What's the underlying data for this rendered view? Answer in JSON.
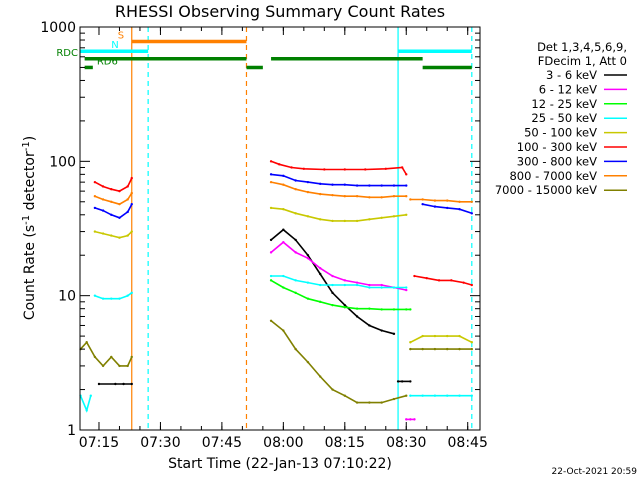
{
  "chart_data": {
    "type": "line",
    "title": "RHESSI Observing Summary Count Rates",
    "xlabel": "Start Time (22-Jan-13 07:10:22)",
    "ylabel": "Count Rate (s⁻¹ detector⁻¹)",
    "ylabel_parts": {
      "main": "Count Rate (s",
      "exp1": "-1",
      "mid": " detector",
      "exp2": "-1",
      "end": ")"
    },
    "yscale": "log",
    "ylim": [
      1,
      1000
    ],
    "xlim": [
      "07:10:22",
      "08:48:00"
    ],
    "x_ticks": [
      "07:15",
      "07:30",
      "07:45",
      "08:00",
      "08:15",
      "08:30",
      "08:45"
    ],
    "y_ticks": [
      "1",
      "10",
      "100",
      "1000"
    ],
    "timestamp": "22-Oct-2021 20:59",
    "legend": {
      "header": [
        "Det 1,3,4,5,6,9,",
        "FDecim 1, Att 0"
      ],
      "position": "right"
    },
    "series": [
      {
        "name": "3 - 6 keV",
        "color": "#000000",
        "segments": [
          {
            "x": [
              "07:15",
              "07:19",
              "07:21",
              "07:23"
            ],
            "y": [
              2.2,
              2.2,
              2.2,
              2.2
            ]
          },
          {
            "x": [
              "07:57",
              "08:00",
              "08:03",
              "08:06",
              "08:09",
              "08:12",
              "08:15",
              "08:18",
              "08:21",
              "08:24",
              "08:27"
            ],
            "y": [
              26,
              31,
              26,
              20,
              14.5,
              10.5,
              8.5,
              7,
              6,
              5.5,
              5.2
            ]
          },
          {
            "x": [
              "08:28",
              "08:29",
              "08:31"
            ],
            "y": [
              2.3,
              2.3,
              2.3
            ]
          }
        ]
      },
      {
        "name": "6 - 12 keV",
        "color": "#ff00ff",
        "segments": [
          {
            "x": [
              "07:57",
              "08:00",
              "08:03",
              "08:06",
              "08:09",
              "08:12",
              "08:15",
              "08:18",
              "08:21",
              "08:24",
              "08:27",
              "08:30"
            ],
            "y": [
              21,
              25,
              21,
              19,
              16,
              14,
              13,
              12.5,
              12,
              12,
              11.5,
              11
            ]
          },
          {
            "x": [
              "08:30",
              "08:31",
              "08:32"
            ],
            "y": [
              1.2,
              1.2,
              1.2
            ]
          }
        ]
      },
      {
        "name": "12 - 25 keV",
        "color": "#00ff00",
        "segments": [
          {
            "x": [
              "07:57",
              "08:00",
              "08:03",
              "08:06",
              "08:09",
              "08:12",
              "08:15",
              "08:18",
              "08:21",
              "08:24",
              "08:27",
              "08:30",
              "08:31"
            ],
            "y": [
              13,
              11.5,
              10.5,
              9.5,
              9,
              8.5,
              8.2,
              8,
              8,
              7.9,
              7.9,
              7.9,
              7.9
            ]
          }
        ]
      },
      {
        "name": "25 - 50 keV",
        "color": "#00ffff",
        "segments": [
          {
            "x": [
              "07:10:30",
              "07:12",
              "07:13"
            ],
            "y": [
              1.8,
              1.4,
              1.8
            ]
          },
          {
            "x": [
              "07:14",
              "07:16",
              "07:18",
              "07:20",
              "07:22",
              "07:23"
            ],
            "y": [
              10,
              9.5,
              9.5,
              9.5,
              10,
              10.5
            ]
          },
          {
            "x": [
              "07:57",
              "08:00",
              "08:03",
              "08:06",
              "08:09",
              "08:12",
              "08:15",
              "08:18",
              "08:21",
              "08:24",
              "08:27",
              "08:30"
            ],
            "y": [
              14,
              14,
              13,
              12.5,
              12,
              12,
              12,
              12,
              11.5,
              11.5,
              11.5,
              11.5
            ]
          },
          {
            "x": [
              "08:31",
              "08:34",
              "08:37",
              "08:40",
              "08:43",
              "08:46"
            ],
            "y": [
              1.8,
              1.8,
              1.8,
              1.8,
              1.8,
              1.8
            ]
          }
        ]
      },
      {
        "name": "50 - 100 keV",
        "color": "#c8c800",
        "segments": [
          {
            "x": [
              "07:14",
              "07:16",
              "07:18",
              "07:20",
              "07:22",
              "07:23"
            ],
            "y": [
              30,
              29,
              28,
              27,
              28,
              30
            ]
          },
          {
            "x": [
              "07:57",
              "08:00",
              "08:03",
              "08:06",
              "08:09",
              "08:12",
              "08:15",
              "08:18",
              "08:21",
              "08:24",
              "08:27",
              "08:30"
            ],
            "y": [
              45,
              44,
              41,
              39,
              37,
              36,
              36,
              36,
              37,
              38,
              39,
              40
            ]
          },
          {
            "x": [
              "08:31",
              "08:34",
              "08:37",
              "08:40",
              "08:43",
              "08:46"
            ],
            "y": [
              4.5,
              5,
              5,
              5,
              5,
              4.5
            ]
          }
        ]
      },
      {
        "name": "100 - 300 keV",
        "color": "#ff0000",
        "segments": [
          {
            "x": [
              "07:14",
              "07:16",
              "07:18",
              "07:20",
              "07:22",
              "07:23"
            ],
            "y": [
              70,
              65,
              62,
              60,
              65,
              75
            ]
          },
          {
            "x": [
              "07:57",
              "07:59",
              "08:02",
              "08:05",
              "08:10",
              "08:15",
              "08:20",
              "08:25",
              "08:29",
              "08:30"
            ],
            "y": [
              100,
              95,
              90,
              88,
              87,
              87,
              87,
              88,
              90,
              80
            ]
          },
          {
            "x": [
              "08:32",
              "08:35",
              "08:38",
              "08:41",
              "08:44",
              "08:46"
            ],
            "y": [
              14,
              13.5,
              13,
              13,
              12.5,
              12
            ]
          }
        ]
      },
      {
        "name": "300 - 800 keV",
        "color": "#0000ff",
        "segments": [
          {
            "x": [
              "07:14",
              "07:16",
              "07:18",
              "07:20",
              "07:22",
              "07:23"
            ],
            "y": [
              45,
              43,
              40,
              38,
              42,
              48
            ]
          },
          {
            "x": [
              "07:57",
              "08:00",
              "08:03",
              "08:06",
              "08:09",
              "08:12",
              "08:15",
              "08:18",
              "08:21",
              "08:24",
              "08:27",
              "08:30"
            ],
            "y": [
              80,
              78,
              72,
              70,
              68,
              67,
              67,
              66,
              66,
              66,
              66,
              66
            ]
          },
          {
            "x": [
              "08:34",
              "08:37",
              "08:40",
              "08:43",
              "08:46"
            ],
            "y": [
              48,
              46,
              45,
              44,
              41
            ]
          }
        ]
      },
      {
        "name": "800 - 7000 keV",
        "color": "#ff8000",
        "segments": [
          {
            "x": [
              "07:14",
              "07:16",
              "07:18",
              "07:20",
              "07:22",
              "07:23"
            ],
            "y": [
              55,
              52,
              50,
              48,
              52,
              58
            ]
          },
          {
            "x": [
              "07:57",
              "08:00",
              "08:03",
              "08:06",
              "08:09",
              "08:12",
              "08:15",
              "08:18",
              "08:21",
              "08:24",
              "08:27",
              "08:30"
            ],
            "y": [
              70,
              67,
              62,
              59,
              57,
              56,
              55,
              55,
              54,
              54,
              55,
              55
            ]
          },
          {
            "x": [
              "08:31",
              "08:34",
              "08:37",
              "08:40",
              "08:43",
              "08:46"
            ],
            "y": [
              52,
              52,
              51,
              51,
              50,
              50
            ]
          }
        ]
      },
      {
        "name": "7000 - 15000 keV",
        "color": "#808000",
        "segments": [
          {
            "x": [
              "07:10:30",
              "07:12",
              "07:14",
              "07:16",
              "07:18",
              "07:20",
              "07:22",
              "07:23"
            ],
            "y": [
              4,
              4.5,
              3.5,
              3,
              3.5,
              3,
              3,
              3.5
            ]
          },
          {
            "x": [
              "07:57",
              "08:00",
              "08:03",
              "08:06",
              "08:09",
              "08:12",
              "08:15",
              "08:18",
              "08:21",
              "08:24",
              "08:27",
              "08:30"
            ],
            "y": [
              6.5,
              5.5,
              4,
              3.2,
              2.5,
              2,
              1.8,
              1.6,
              1.6,
              1.6,
              1.7,
              1.8
            ]
          },
          {
            "x": [
              "08:31",
              "08:34",
              "08:37",
              "08:40",
              "08:43",
              "08:46"
            ],
            "y": [
              4,
              4,
              4,
              4,
              4,
              4
            ]
          }
        ]
      }
    ],
    "markers": [
      {
        "label": "S",
        "color": "#ff8000",
        "x": [
          "07:23",
          "07:51"
        ],
        "y": 780
      },
      {
        "label": "N",
        "color": "#00ffff",
        "x": [
          "07:10:22",
          "07:27"
        ],
        "y": 660
      },
      {
        "label": "",
        "color": "#00ffff",
        "x": [
          "08:28",
          "08:46"
        ],
        "y": 660
      },
      {
        "label": "RDC",
        "color": "#008000",
        "x": [
          "07:11:30",
          "07:51"
        ],
        "y": 580
      },
      {
        "label": "",
        "color": "#008000",
        "x": [
          "07:57",
          "08:34"
        ],
        "y": 580
      },
      {
        "label": "RD6",
        "color": "#008000",
        "x": [
          "07:11:30",
          "07:13:30"
        ],
        "y": 500
      },
      {
        "label": "",
        "color": "#008000",
        "x": [
          "07:51",
          "07:55"
        ],
        "y": 500
      },
      {
        "label": "",
        "color": "#008000",
        "x": [
          "08:34",
          "08:46"
        ],
        "y": 500
      }
    ],
    "vlines": [
      {
        "x": "07:23",
        "color": "#ff8000",
        "style": "solid"
      },
      {
        "x": "07:27",
        "color": "#00ffff",
        "style": "dashed"
      },
      {
        "x": "07:51",
        "color": "#ff8000",
        "style": "dashed"
      },
      {
        "x": "08:28",
        "color": "#00ffff",
        "style": "solid"
      },
      {
        "x": "08:46",
        "color": "#00ffff",
        "style": "dashed"
      }
    ]
  }
}
